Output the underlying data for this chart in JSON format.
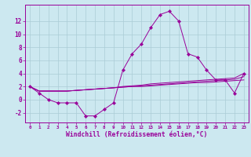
{
  "x": [
    0,
    1,
    2,
    3,
    4,
    5,
    6,
    7,
    8,
    9,
    10,
    11,
    12,
    13,
    14,
    15,
    16,
    17,
    18,
    19,
    20,
    21,
    22,
    23
  ],
  "windchill": [
    2,
    1,
    0,
    -0.5,
    -0.5,
    -0.5,
    -2.5,
    -2.5,
    -1.5,
    -0.5,
    4.5,
    7,
    8.5,
    11,
    13,
    13.5,
    12,
    7,
    6.5,
    4.5,
    3,
    3,
    1,
    4
  ],
  "line2": [
    2,
    1.3,
    1.3,
    1.3,
    1.3,
    1.4,
    1.5,
    1.6,
    1.7,
    1.8,
    2.0,
    2.1,
    2.2,
    2.4,
    2.5,
    2.6,
    2.7,
    2.8,
    2.9,
    3.0,
    3.1,
    3.2,
    3.3,
    4.0
  ],
  "line3": [
    2,
    1.3,
    1.3,
    1.3,
    1.3,
    1.4,
    1.5,
    1.6,
    1.7,
    1.8,
    1.9,
    2.0,
    2.1,
    2.2,
    2.3,
    2.4,
    2.5,
    2.6,
    2.7,
    2.8,
    2.9,
    3.0,
    3.1,
    3.5
  ],
  "line4": [
    2,
    1.3,
    1.3,
    1.3,
    1.3,
    1.4,
    1.5,
    1.6,
    1.7,
    1.8,
    1.9,
    2.0,
    2.0,
    2.1,
    2.2,
    2.3,
    2.4,
    2.5,
    2.6,
    2.6,
    2.7,
    2.8,
    2.9,
    3.0
  ],
  "color": "#990099",
  "bg_color": "#cce8f0",
  "grid_color": "#aaccd6",
  "ylim": [
    -3.5,
    14.5
  ],
  "yticks": [
    -2,
    0,
    2,
    4,
    6,
    8,
    10,
    12
  ],
  "xticks": [
    0,
    1,
    2,
    3,
    4,
    5,
    6,
    7,
    8,
    9,
    10,
    11,
    12,
    13,
    14,
    15,
    16,
    17,
    18,
    19,
    20,
    21,
    22,
    23
  ],
  "xlabel": "Windchill (Refroidissement éolien,°C)"
}
